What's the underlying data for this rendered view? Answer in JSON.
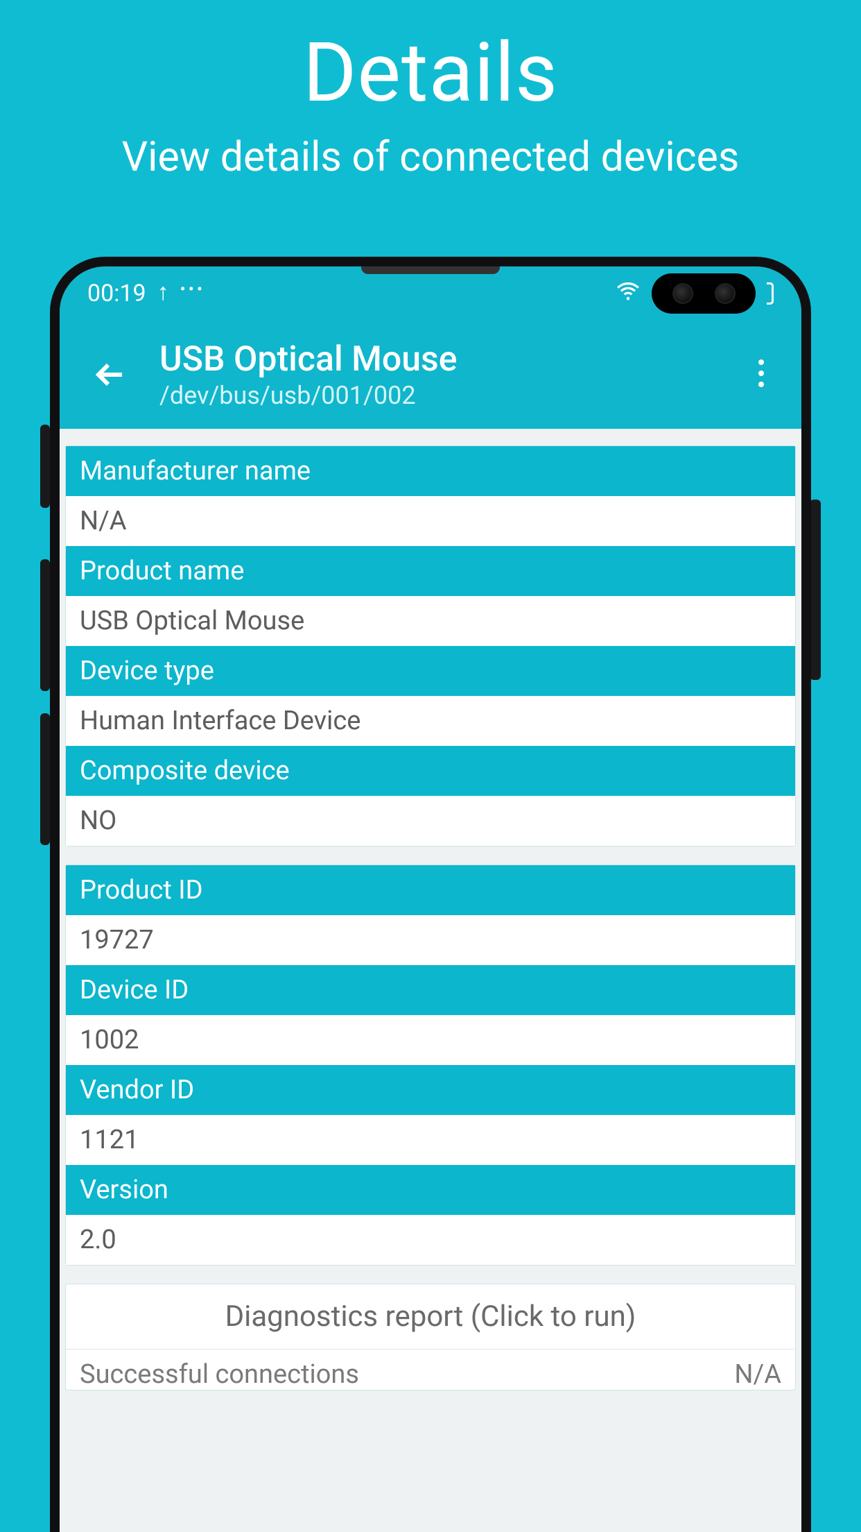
{
  "promo": {
    "title": "Details",
    "subtitle": "View details of connected devices"
  },
  "statusbar": {
    "time": "00:19"
  },
  "appbar": {
    "title": "USB Optical Mouse",
    "subtitle": "/dev/bus/usb/001/002"
  },
  "section1": [
    {
      "label": "Manufacturer name",
      "value": "N/A"
    },
    {
      "label": "Product name",
      "value": "USB Optical Mouse"
    },
    {
      "label": "Device type",
      "value": "Human Interface Device"
    },
    {
      "label": "Composite device",
      "value": "NO"
    }
  ],
  "section2": [
    {
      "label": "Product ID",
      "value": "19727"
    },
    {
      "label": "Device ID",
      "value": "1002"
    },
    {
      "label": "Vendor ID",
      "value": "1121"
    },
    {
      "label": "Version",
      "value": "2.0"
    }
  ],
  "diagnostics": {
    "header": "Diagnostics report  (Click to run)",
    "rows": [
      {
        "label": "Successful connections",
        "value": "N/A"
      }
    ]
  },
  "colors": {
    "brand_bg": "#10bcd2",
    "appbar_bg": "#10b6cc",
    "row_label_bg": "#0cb6cd",
    "body_bg": "#eef2f3",
    "text_muted": "#5d5d5d"
  }
}
